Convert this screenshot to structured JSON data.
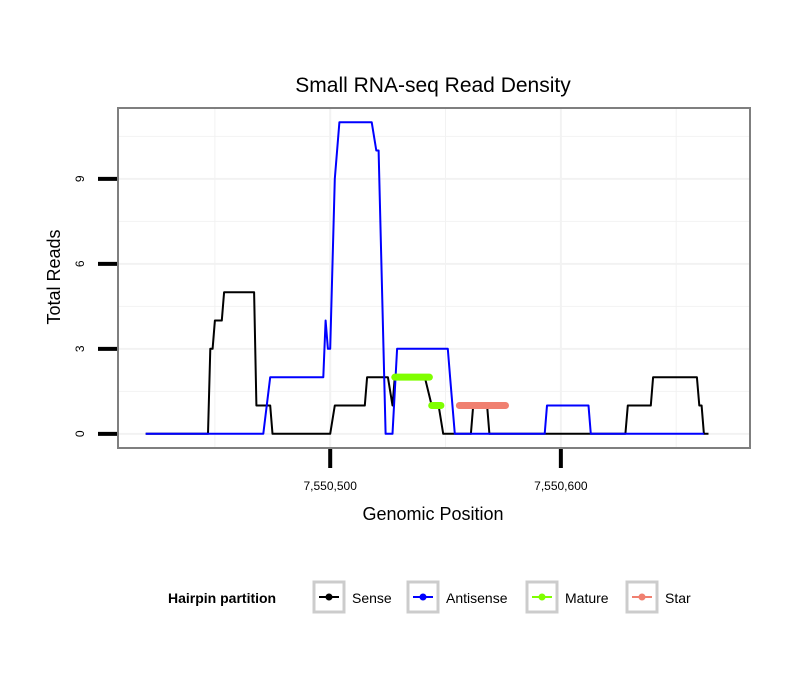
{
  "chart_data": {
    "type": "line",
    "title": "Small RNA-seq Read Density",
    "xlabel": "Genomic Position",
    "ylabel": "Total Reads",
    "xlim": [
      7550408,
      7550682
    ],
    "ylim": [
      -0.5,
      11.5
    ],
    "x_ticks": [
      {
        "value": 7550500,
        "label": "7,550,500"
      },
      {
        "value": 7550600,
        "label": "7,550,600"
      }
    ],
    "y_ticks": [
      {
        "value": 0,
        "label": "0"
      },
      {
        "value": 3,
        "label": "3"
      },
      {
        "value": 6,
        "label": "6"
      },
      {
        "value": 9,
        "label": "9"
      }
    ],
    "x_grid_minor": [
      7550450,
      7550550,
      7550650
    ],
    "y_grid_minor": [
      1.5,
      4.5,
      7.5,
      10.5
    ],
    "grid": true,
    "legend": {
      "title": "Hairpin partition",
      "position": "bottom",
      "entries": [
        {
          "name": "Sense",
          "color": "#000000"
        },
        {
          "name": "Antisense",
          "color": "#0000ff"
        },
        {
          "name": "Mature",
          "color": "#7fff00"
        },
        {
          "name": "Star",
          "color": "#f08070"
        }
      ]
    },
    "series": [
      {
        "name": "Sense",
        "color": "#000000",
        "points": [
          [
            7550420,
            0
          ],
          [
            7550447,
            0
          ],
          [
            7550448,
            3
          ],
          [
            7550449,
            3
          ],
          [
            7550450,
            4
          ],
          [
            7550453,
            4
          ],
          [
            7550454,
            5
          ],
          [
            7550467,
            5
          ],
          [
            7550468,
            1
          ],
          [
            7550474,
            1
          ],
          [
            7550475,
            0
          ],
          [
            7550500,
            0
          ],
          [
            7550502,
            1
          ],
          [
            7550515,
            1
          ],
          [
            7550516,
            2
          ],
          [
            7550525,
            2
          ],
          [
            7550527,
            1
          ],
          [
            7550528,
            2
          ],
          [
            7550541,
            2
          ],
          [
            7550544,
            1
          ],
          [
            7550547,
            1
          ],
          [
            7550549,
            0
          ],
          [
            7550561,
            0
          ],
          [
            7550562,
            1
          ],
          [
            7550568,
            1
          ],
          [
            7550569,
            0
          ],
          [
            7550628,
            0
          ],
          [
            7550629,
            1
          ],
          [
            7550639,
            1
          ],
          [
            7550640,
            2
          ],
          [
            7550659,
            2
          ],
          [
            7550660,
            1
          ],
          [
            7550661,
            1
          ],
          [
            7550662,
            0
          ],
          [
            7550664,
            0
          ]
        ]
      },
      {
        "name": "Antisense",
        "color": "#0000ff",
        "points": [
          [
            7550420,
            0
          ],
          [
            7550467,
            0
          ],
          [
            7550469,
            0
          ],
          [
            7550471,
            0
          ],
          [
            7550474,
            2
          ],
          [
            7550497,
            2
          ],
          [
            7550498,
            4
          ],
          [
            7550499,
            3
          ],
          [
            7550500,
            3
          ],
          [
            7550502,
            9
          ],
          [
            7550504,
            11
          ],
          [
            7550518,
            11
          ],
          [
            7550520,
            10
          ],
          [
            7550521,
            10
          ],
          [
            7550524,
            0
          ],
          [
            7550527,
            0
          ],
          [
            7550529,
            3
          ],
          [
            7550551,
            3
          ],
          [
            7550552,
            2
          ],
          [
            7550554,
            0
          ],
          [
            7550593,
            0
          ],
          [
            7550594,
            1
          ],
          [
            7550612,
            1
          ],
          [
            7550613,
            0
          ],
          [
            7550662,
            0
          ]
        ]
      }
    ],
    "segments": [
      {
        "name": "Mature",
        "color": "#7fff00",
        "y": 2,
        "x_start": 7550528,
        "x_end": 7550543
      },
      {
        "name": "Mature",
        "color": "#7fff00",
        "y": 1,
        "x_start": 7550544,
        "x_end": 7550548
      },
      {
        "name": "Star",
        "color": "#f08070",
        "y": 1,
        "x_start": 7550556,
        "x_end": 7550576
      }
    ]
  }
}
